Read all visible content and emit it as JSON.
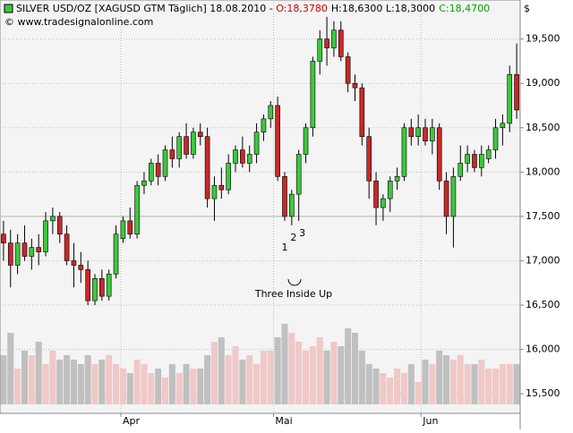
{
  "chart_data": {
    "type": "candlestick",
    "title": "SILVER USD/OZ [XAGUSD GTM  Täglich] 18.08.2010 - ",
    "open_label": "O:18,3780",
    "high_low_label": "H:18,6300 L:18,3000",
    "close_label": "C:18,4700",
    "copyright": "© www.tradesignalonline.com",
    "unit": "$",
    "annotation": "Three Inside Up",
    "pattern_labels": [
      {
        "text": "1",
        "index": 40
      },
      {
        "text": "2",
        "index": 41
      },
      {
        "text": "3",
        "index": 42
      }
    ],
    "up_color": "#3cc83c",
    "down_color": "#c82828",
    "volume_up_color": "#f0c8c8",
    "volume_down_color": "#c0c0c0",
    "open": [
      17.3,
      17.2,
      16.95,
      17.2,
      17.05,
      17.15,
      17.1,
      17.45,
      17.5,
      17.3,
      17.0,
      16.95,
      16.9,
      16.55,
      16.8,
      16.6,
      16.85,
      17.25,
      17.45,
      17.3,
      17.85,
      17.9,
      18.1,
      17.95,
      18.25,
      18.15,
      18.4,
      18.2,
      18.45,
      18.4,
      17.7,
      17.85,
      17.8,
      18.1,
      18.25,
      18.1,
      18.2,
      18.45,
      18.6,
      18.75,
      17.95,
      17.5,
      17.75,
      18.2,
      18.5,
      19.25,
      19.5,
      19.4,
      19.6,
      19.3,
      19.0,
      18.95,
      18.4,
      17.9,
      17.6,
      17.7,
      17.9,
      17.95,
      18.5,
      18.4,
      18.5,
      18.35,
      18.5,
      17.9,
      17.5,
      17.95,
      18.1,
      18.2,
      18.05,
      18.15,
      18.25,
      18.5,
      18.55,
      19.1
    ],
    "high": [
      17.45,
      17.35,
      17.3,
      17.4,
      17.25,
      17.3,
      17.55,
      17.6,
      17.55,
      17.4,
      17.2,
      17.1,
      17.0,
      16.85,
      16.9,
      16.9,
      17.4,
      17.5,
      17.6,
      17.9,
      18.0,
      18.15,
      18.2,
      18.3,
      18.4,
      18.45,
      18.55,
      18.5,
      18.55,
      18.5,
      17.95,
      18.05,
      18.2,
      18.3,
      18.4,
      18.3,
      18.55,
      18.65,
      18.8,
      18.85,
      18.0,
      17.8,
      18.25,
      18.55,
      19.3,
      19.6,
      19.75,
      19.7,
      19.7,
      19.35,
      19.1,
      19.0,
      18.5,
      18.0,
      17.75,
      17.95,
      18.05,
      18.55,
      18.6,
      18.65,
      18.6,
      18.6,
      18.55,
      18.0,
      18.05,
      18.3,
      18.3,
      18.25,
      18.3,
      18.3,
      18.6,
      18.65,
      19.2,
      19.45
    ],
    "low": [
      17.0,
      16.7,
      16.85,
      17.0,
      16.9,
      16.95,
      17.05,
      17.3,
      17.2,
      16.95,
      16.7,
      16.75,
      16.5,
      16.5,
      16.55,
      16.55,
      16.8,
      17.2,
      17.25,
      17.25,
      17.75,
      17.85,
      17.85,
      17.9,
      18.05,
      18.05,
      18.15,
      18.15,
      18.3,
      17.6,
      17.45,
      17.7,
      17.75,
      18.0,
      18.05,
      18.0,
      18.1,
      18.35,
      18.5,
      17.9,
      17.45,
      17.4,
      17.45,
      18.1,
      18.4,
      19.1,
      19.2,
      19.3,
      19.25,
      18.9,
      18.8,
      18.3,
      17.7,
      17.4,
      17.45,
      17.55,
      17.8,
      17.9,
      18.3,
      18.3,
      18.3,
      18.2,
      17.8,
      17.3,
      17.15,
      17.9,
      18.0,
      18.0,
      17.95,
      18.1,
      18.15,
      18.3,
      18.45,
      18.6
    ],
    "close": [
      17.2,
      16.95,
      17.2,
      17.05,
      17.15,
      17.1,
      17.45,
      17.5,
      17.3,
      17.0,
      16.95,
      16.9,
      16.55,
      16.8,
      16.6,
      16.85,
      17.3,
      17.45,
      17.3,
      17.85,
      17.9,
      18.1,
      17.95,
      18.25,
      18.15,
      18.4,
      18.2,
      18.45,
      18.4,
      17.7,
      17.85,
      17.8,
      18.1,
      18.25,
      18.1,
      18.2,
      18.45,
      18.6,
      18.75,
      17.95,
      17.5,
      17.75,
      18.2,
      18.5,
      19.25,
      19.5,
      19.4,
      19.6,
      19.3,
      19.0,
      18.95,
      18.4,
      17.9,
      17.6,
      17.7,
      17.9,
      17.95,
      18.5,
      18.4,
      18.5,
      18.35,
      18.5,
      17.9,
      17.5,
      17.95,
      18.1,
      18.2,
      18.05,
      18.2,
      18.25,
      18.5,
      18.55,
      19.1,
      18.7
    ],
    "volume": [
      55,
      80,
      40,
      60,
      55,
      70,
      45,
      60,
      50,
      55,
      50,
      45,
      55,
      45,
      50,
      55,
      45,
      40,
      35,
      50,
      45,
      35,
      40,
      30,
      45,
      35,
      45,
      40,
      40,
      55,
      70,
      75,
      55,
      65,
      50,
      55,
      45,
      60,
      60,
      75,
      90,
      80,
      70,
      60,
      65,
      75,
      60,
      70,
      65,
      85,
      80,
      60,
      45,
      40,
      35,
      30,
      40,
      35,
      45,
      25,
      50,
      45,
      60,
      55,
      50,
      55,
      45,
      45,
      50,
      40,
      40,
      45,
      45,
      45
    ],
    "vlim": [
      0,
      100
    ],
    "xlim": [
      -0.5,
      73.5
    ],
    "xticks": [
      {
        "value": 16.7,
        "label": "Apr"
      },
      {
        "value": 38.4,
        "label": "Mai"
      },
      {
        "value": 59.4,
        "label": "Jun"
      }
    ],
    "ylim": [
      15.28,
      19.94
    ],
    "yticks": [
      {
        "value": 15.5,
        "label": "15,500"
      },
      {
        "value": 16,
        "label": "16,000"
      },
      {
        "value": 16.5,
        "label": "16,500"
      },
      {
        "value": 17,
        "label": "17,000"
      },
      {
        "value": 17.5,
        "label": "17,500"
      },
      {
        "value": 18,
        "label": "18,000"
      },
      {
        "value": 18.5,
        "label": "18,500"
      },
      {
        "value": 19,
        "label": "19,000"
      },
      {
        "value": 19.5,
        "label": "19,500"
      }
    ],
    "hline": 17.5,
    "grid": true
  }
}
